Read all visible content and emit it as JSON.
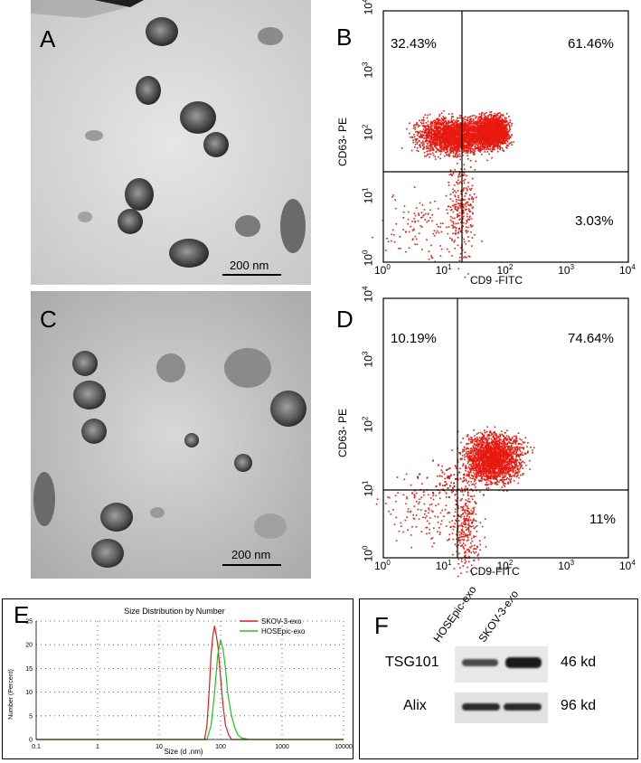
{
  "panels": {
    "A": {
      "letter": "A",
      "scale_bar": "200 nm"
    },
    "B": {
      "letter": "B",
      "q_ul": "32.43%",
      "q_ur": "61.46%",
      "q_lr": "3.03%",
      "xlabel": "CD9 -FITC",
      "ylabel": "CD63- PE"
    },
    "C": {
      "letter": "C",
      "scale_bar": "200 nm"
    },
    "D": {
      "letter": "D",
      "q_ul": "10.19%",
      "q_ur": "74.64%",
      "q_lr": "11%",
      "xlabel": "CD9-FITC",
      "ylabel": "CD63- PE"
    },
    "E": {
      "letter": "E"
    },
    "F": {
      "letter": "F",
      "lanes": [
        "HOSEpic-exo",
        "SKOV-3-exo"
      ],
      "rows": [
        {
          "label": "TSG101",
          "size": "46 kd"
        },
        {
          "label": "Alix",
          "size": "96 kd"
        }
      ]
    }
  },
  "flow_ticks": [
    "10",
    "10",
    "10",
    "10",
    "10"
  ],
  "flow_exps": [
    "0",
    "1",
    "2",
    "3",
    "4"
  ],
  "chart_data": [
    {
      "type": "line",
      "title": "Size Distribution by Number",
      "xlabel": "Size (d .nm)",
      "ylabel": "Number (Percent)",
      "xscale": "log",
      "xlim": [
        0.1,
        10000
      ],
      "ylim": [
        0,
        25
      ],
      "xticks": [
        "0.1",
        "1",
        "10",
        "100",
        "1000",
        "10000"
      ],
      "yticks": [
        "0",
        "5",
        "10",
        "15",
        "20",
        "25"
      ],
      "legend": "top-right",
      "series": [
        {
          "name": "SKOV-3-exo",
          "color": "#e21b1b",
          "x": [
            40,
            55,
            60,
            65,
            70,
            75,
            80,
            90,
            100,
            110,
            120,
            135,
            150,
            160
          ],
          "y": [
            0,
            0,
            3,
            10,
            18,
            22,
            24,
            20,
            13,
            7,
            3,
            1,
            0,
            0
          ]
        },
        {
          "name": "HOSEpic-exo",
          "color": "#22c31f",
          "x": [
            50,
            60,
            70,
            80,
            90,
            100,
            110,
            120,
            130,
            150,
            170,
            190,
            220,
            300
          ],
          "y": [
            0,
            0,
            3,
            10,
            18,
            21,
            19,
            15,
            10,
            5,
            2.5,
            1,
            0.3,
            0
          ]
        }
      ]
    }
  ]
}
